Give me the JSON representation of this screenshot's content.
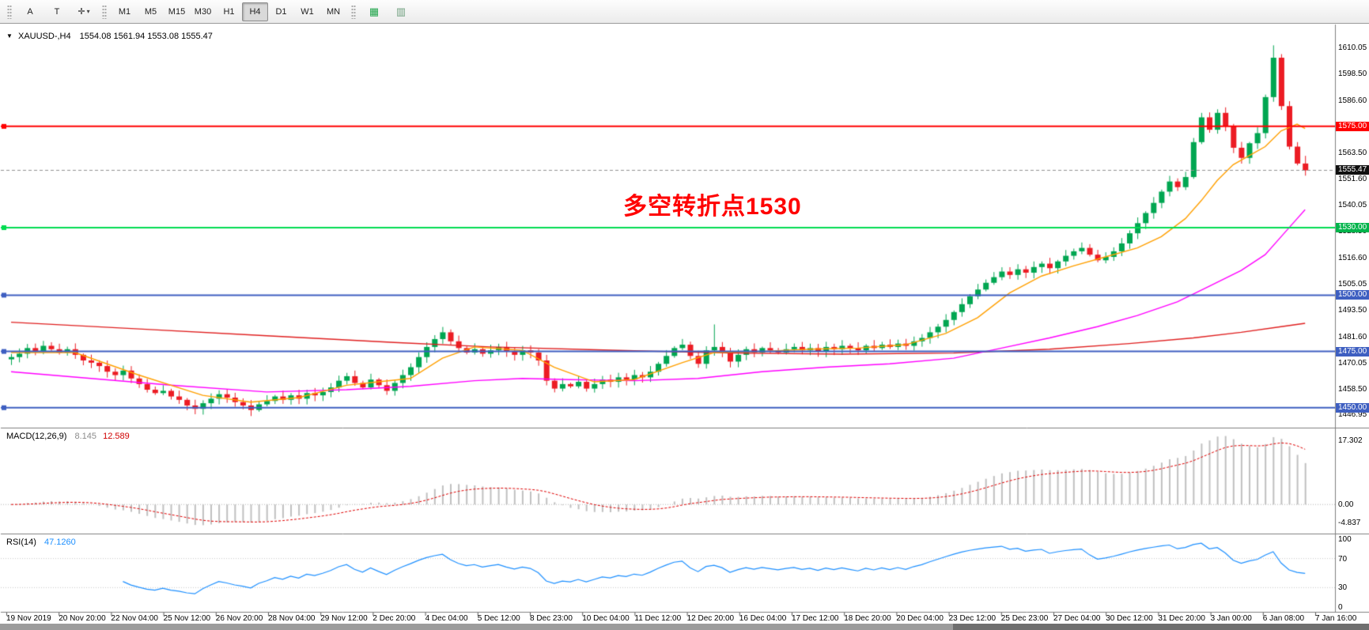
{
  "colors": {
    "up": "#00A651",
    "down": "#EC1C24",
    "ma_fast": "#FFA000",
    "ma_mid": "#FF00FF",
    "ma_slow": "#E02020",
    "macd_hist": "#C0C0C0",
    "macd_signal": "#E00000",
    "rsi_line": "#1E90FF",
    "level_dotted": "#C8C8C8",
    "current_price_line": "#909090",
    "panel_border": "#808080"
  },
  "icons": {
    "title_marker": "▼",
    "cursor_glyph": "✛",
    "caret": "▾",
    "grid_glyph": "▦",
    "arrange_glyph": "▥"
  },
  "toolbar": {
    "text_tool": "A",
    "label_tool": "T",
    "timeframes": [
      "M1",
      "M5",
      "M15",
      "M30",
      "H1",
      "H4",
      "D1",
      "W1",
      "MN"
    ],
    "selected_timeframe": "H4"
  },
  "chart": {
    "title_symbol": "XAUUSD-,H4",
    "title_ohlc": "1554.08 1561.94 1553.08 1555.47",
    "annotation": "多空转折点1530",
    "hlines": [
      {
        "price": 1575.0,
        "label": "1575.00",
        "color": "#FF0000",
        "tag_bg": "#FF0000"
      },
      {
        "price": 1530.0,
        "label": "1530.00",
        "color": "#00DC50",
        "tag_bg": "#00B44B"
      },
      {
        "price": 1500.0,
        "label": "1500.00",
        "color": "#3E5FC1",
        "tag_bg": "#3E5FC1"
      },
      {
        "price": 1475.0,
        "label": "1475.00",
        "color": "#3E5FC1",
        "tag_bg": "#3E5FC1"
      },
      {
        "price": 1450.0,
        "label": "1450.00",
        "color": "#3E5FC1",
        "tag_bg": "#3E5FC1"
      }
    ],
    "current_price": {
      "price": 1555.47,
      "label": "1555.47",
      "tag_bg": "#101010"
    },
    "price_axis_labels": [
      "1610.05",
      "1598.50",
      "1586.60",
      "1563.50",
      "1551.60",
      "1540.05",
      "1528.50",
      "1516.60",
      "1505.05",
      "1493.50",
      "1481.60",
      "1470.05",
      "1458.50",
      "1446.95"
    ]
  },
  "macd": {
    "name": "MACD(12,26,9)",
    "value_main": "8.145",
    "value_signal": "12.589",
    "axis": [
      {
        "label": "17.302",
        "value": 17.302
      },
      {
        "label": "0.00",
        "value": 0
      },
      {
        "label": "-4.837",
        "value": -4.837
      }
    ]
  },
  "rsi": {
    "name": "RSI(14)",
    "value": "47.1260",
    "axis": [
      {
        "label": "100",
        "value": 100
      },
      {
        "label": "70",
        "value": 70
      },
      {
        "label": "30",
        "value": 30
      },
      {
        "label": "0",
        "value": 0
      }
    ],
    "levels": [
      70,
      30
    ]
  },
  "time_axis": [
    "19 Nov 2019",
    "20 Nov 20:00",
    "22 Nov 04:00",
    "25 Nov 12:00",
    "26 Nov 20:00",
    "28 Nov 04:00",
    "29 Nov 12:00",
    "2 Dec 20:00",
    "4 Dec 04:00",
    "5 Dec 12:00",
    "8 Dec 23:00",
    "10 Dec 04:00",
    "11 Dec 12:00",
    "12 Dec 20:00",
    "16 Dec 04:00",
    "17 Dec 12:00",
    "18 Dec 20:00",
    "20 Dec 04:00",
    "23 Dec 12:00",
    "25 Dec 23:00",
    "27 Dec 04:00",
    "30 Dec 12:00",
    "31 Dec 20:00",
    "3 Jan 00:00",
    "6 Jan 08:00",
    "7 Jan 16:00"
  ],
  "chart_data": {
    "type": "candlestick",
    "symbol": "XAUUSD-",
    "period": "H4",
    "price_range": [
      1441.5,
      1618.5
    ],
    "indicators": [
      {
        "name": "MACD",
        "params": [
          12,
          26,
          9
        ],
        "current_main": 8.145,
        "current_signal": 12.589
      },
      {
        "name": "RSI",
        "params": [
          14
        ],
        "current": 47.126
      }
    ],
    "closes": [
      1472.5,
      1474.0,
      1476.5,
      1475.0,
      1477.5,
      1476.0,
      1474.5,
      1476.0,
      1473.5,
      1471.0,
      1470.0,
      1468.5,
      1466.0,
      1464.5,
      1466.5,
      1463.0,
      1460.5,
      1458.0,
      1456.5,
      1457.5,
      1455.0,
      1453.5,
      1451.0,
      1449.5,
      1452.0,
      1454.0,
      1456.0,
      1454.5,
      1452.5,
      1451.0,
      1449.0,
      1451.5,
      1453.0,
      1455.0,
      1453.5,
      1455.5,
      1454.0,
      1456.5,
      1455.5,
      1457.0,
      1459.0,
      1462.0,
      1464.0,
      1461.0,
      1459.0,
      1462.5,
      1460.0,
      1457.5,
      1461.0,
      1464.5,
      1468.0,
      1472.5,
      1477.0,
      1480.5,
      1483.5,
      1479.5,
      1476.5,
      1474.5,
      1476.0,
      1474.0,
      1475.5,
      1477.0,
      1475.0,
      1473.5,
      1475.5,
      1474.5,
      1471.0,
      1462.0,
      1458.5,
      1460.5,
      1459.5,
      1461.5,
      1458.5,
      1460.5,
      1462.5,
      1461.5,
      1463.5,
      1462.5,
      1464.5,
      1463.5,
      1466.0,
      1469.5,
      1473.0,
      1476.5,
      1478.0,
      1473.0,
      1469.5,
      1475.5,
      1477.0,
      1475.0,
      1470.5,
      1473.5,
      1476.0,
      1474.5,
      1476.5,
      1475.5,
      1474.5,
      1476.0,
      1477.0,
      1475.5,
      1476.5,
      1475.0,
      1477.0,
      1476.0,
      1477.5,
      1476.5,
      1475.5,
      1477.5,
      1476.5,
      1478.0,
      1477.0,
      1478.5,
      1477.5,
      1479.5,
      1481.0,
      1483.5,
      1486.0,
      1489.0,
      1492.5,
      1496.0,
      1499.5,
      1502.5,
      1505.5,
      1508.0,
      1510.5,
      1509.0,
      1511.5,
      1510.0,
      1512.5,
      1514.0,
      1512.0,
      1515.0,
      1517.5,
      1519.5,
      1521.0,
      1518.0,
      1515.5,
      1517.0,
      1519.5,
      1523.0,
      1527.5,
      1532.0,
      1536.5,
      1541.0,
      1546.0,
      1550.5,
      1548.0,
      1552.5,
      1568.0,
      1579.0,
      1573.5,
      1581.0,
      1575.0,
      1565.5,
      1561.0,
      1567.5,
      1572.0,
      1588.0,
      1605.5,
      1584.0,
      1566.0,
      1558.5,
      1555.47
    ],
    "wick_overrides": {
      "30": {
        "low": 1446.3
      },
      "88": {
        "high": 1487.0
      },
      "158": {
        "high": 1611.0
      },
      "162": {
        "high": 1561.9,
        "low": 1553.1
      }
    },
    "ma_fast_points": [
      [
        0,
        1474.5
      ],
      [
        8,
        1474.5
      ],
      [
        16,
        1464.5
      ],
      [
        24,
        1455.5
      ],
      [
        30,
        1452.5
      ],
      [
        36,
        1454.5
      ],
      [
        42,
        1460.0
      ],
      [
        46,
        1461.5
      ],
      [
        50,
        1463.0
      ],
      [
        54,
        1472.0
      ],
      [
        58,
        1477.0
      ],
      [
        64,
        1475.5
      ],
      [
        68,
        1468.0
      ],
      [
        73,
        1461.5
      ],
      [
        78,
        1462.5
      ],
      [
        84,
        1470.0
      ],
      [
        88,
        1474.5
      ],
      [
        94,
        1475.0
      ],
      [
        100,
        1476.0
      ],
      [
        106,
        1476.5
      ],
      [
        112,
        1478.0
      ],
      [
        117,
        1483.0
      ],
      [
        121,
        1490.0
      ],
      [
        125,
        1501.0
      ],
      [
        129,
        1508.5
      ],
      [
        133,
        1513.0
      ],
      [
        137,
        1517.0
      ],
      [
        141,
        1521.0
      ],
      [
        144,
        1526.0
      ],
      [
        147,
        1534.0
      ],
      [
        149,
        1542.0
      ],
      [
        151,
        1551.0
      ],
      [
        153,
        1558.0
      ],
      [
        155,
        1562.0
      ],
      [
        157,
        1566.0
      ],
      [
        159,
        1573.0
      ],
      [
        161,
        1576.0
      ],
      [
        162,
        1574.0
      ]
    ],
    "ma_mid_points": [
      [
        0,
        1466.0
      ],
      [
        10,
        1463.0
      ],
      [
        20,
        1460.0
      ],
      [
        32,
        1457.0
      ],
      [
        42,
        1458.0
      ],
      [
        50,
        1459.5
      ],
      [
        58,
        1462.0
      ],
      [
        64,
        1463.0
      ],
      [
        70,
        1462.5
      ],
      [
        78,
        1462.0
      ],
      [
        86,
        1463.0
      ],
      [
        94,
        1466.0
      ],
      [
        102,
        1468.0
      ],
      [
        110,
        1469.5
      ],
      [
        118,
        1472.0
      ],
      [
        124,
        1476.5
      ],
      [
        130,
        1481.0
      ],
      [
        136,
        1486.0
      ],
      [
        141,
        1491.0
      ],
      [
        146,
        1497.0
      ],
      [
        150,
        1504.0
      ],
      [
        154,
        1511.0
      ],
      [
        157,
        1518.0
      ],
      [
        159,
        1526.0
      ],
      [
        161,
        1534.0
      ],
      [
        162,
        1538.0
      ]
    ],
    "ma_slow_points": [
      [
        0,
        1488.0
      ],
      [
        16,
        1485.0
      ],
      [
        32,
        1482.0
      ],
      [
        48,
        1479.0
      ],
      [
        60,
        1477.0
      ],
      [
        76,
        1475.5
      ],
      [
        90,
        1474.3
      ],
      [
        104,
        1473.8
      ],
      [
        118,
        1474.3
      ],
      [
        130,
        1476.0
      ],
      [
        140,
        1478.5
      ],
      [
        148,
        1481.0
      ],
      [
        154,
        1483.5
      ],
      [
        159,
        1486.0
      ],
      [
        162,
        1487.5
      ]
    ]
  }
}
